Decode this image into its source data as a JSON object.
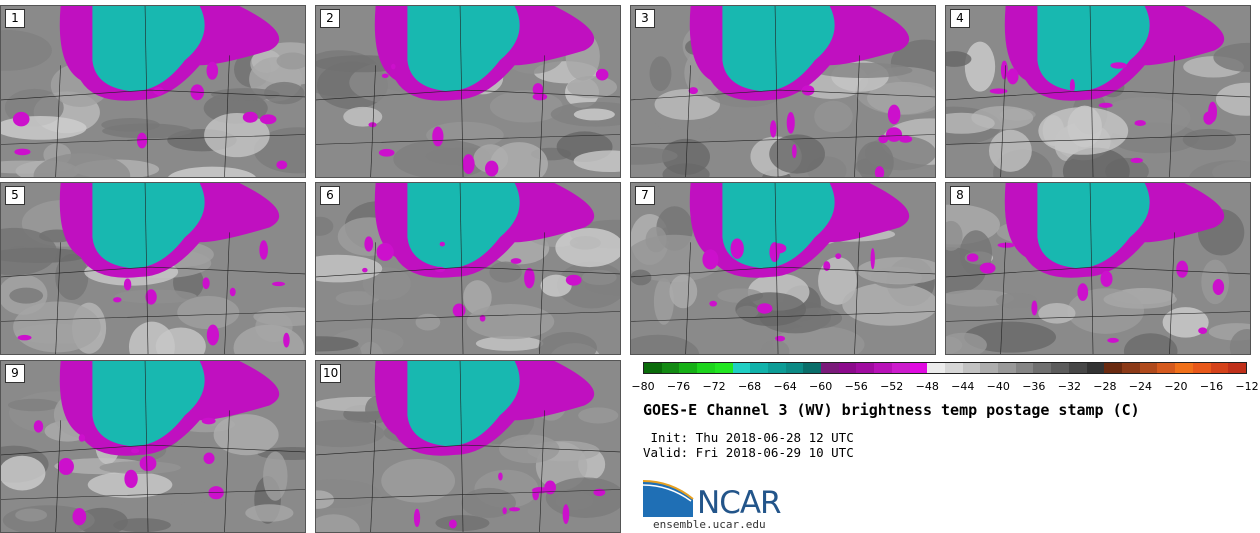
{
  "panels": [
    {
      "label": "1"
    },
    {
      "label": "2"
    },
    {
      "label": "3"
    },
    {
      "label": "4"
    },
    {
      "label": "5"
    },
    {
      "label": "6"
    },
    {
      "label": "7"
    },
    {
      "label": "8"
    },
    {
      "label": "9"
    },
    {
      "label": "10"
    }
  ],
  "colorbar": {
    "colors": [
      "#0a6b0a",
      "#138a13",
      "#16b016",
      "#1dd41d",
      "#22e622",
      "#20cfc4",
      "#11b2aa",
      "#0d9c96",
      "#0c8a85",
      "#0a6e6a",
      "#7a1a7a",
      "#8c0a8c",
      "#a00ca0",
      "#b812b8",
      "#cc1ccc",
      "#e00be0",
      "#ebebeb",
      "#d6d6d6",
      "#c2c2c2",
      "#adadad",
      "#999999",
      "#858585",
      "#707070",
      "#5c5c5c",
      "#474747",
      "#333333",
      "#6a2a10",
      "#8c3a18",
      "#b04a1c",
      "#d55a1e",
      "#f0701a",
      "#e8581a",
      "#d4421a",
      "#c0301a"
    ],
    "tick_labels": [
      "−80",
      "−76",
      "−72",
      "−68",
      "−64",
      "−60",
      "−56",
      "−52",
      "−48",
      "−44",
      "−40",
      "−36",
      "−32",
      "−28",
      "−24",
      "−20",
      "−16",
      "−12"
    ],
    "range": [
      -80,
      -12
    ]
  },
  "title": "GOES-E Channel 3 (WV) brightness temp postage stamp (C)",
  "init": " Init: Thu 2018-06-28 12 UTC",
  "valid": "Valid: Fri 2018-06-29 10 UTC",
  "logo_text": "NCAR",
  "site": "ensemble.ucar.edu"
}
